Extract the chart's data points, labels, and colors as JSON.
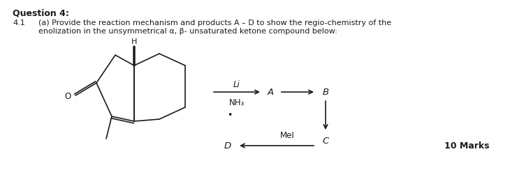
{
  "title": "Question 4:",
  "question_num": "4.1",
  "q_line1": "(a) Provide the reaction mechanism and products A – D to show the regio-chemistry of the",
  "q_line2": "enolization in the unsymmetrical α, β- unsaturated ketone compound below:",
  "reagent_line1": "Li",
  "reagent_line2": "NH₃",
  "bullet": "•",
  "label_A": "A",
  "label_B": "B",
  "label_C": "C",
  "label_D": "D",
  "label_MeI": "MeI",
  "marks": "10 Marks",
  "bg_color": "#ffffff",
  "text_color": "#1a1a1a",
  "fontsize_title": 9,
  "fontsize_question": 8,
  "fontsize_labels": 9,
  "fontsize_marks": 9,
  "lw": 1.2
}
